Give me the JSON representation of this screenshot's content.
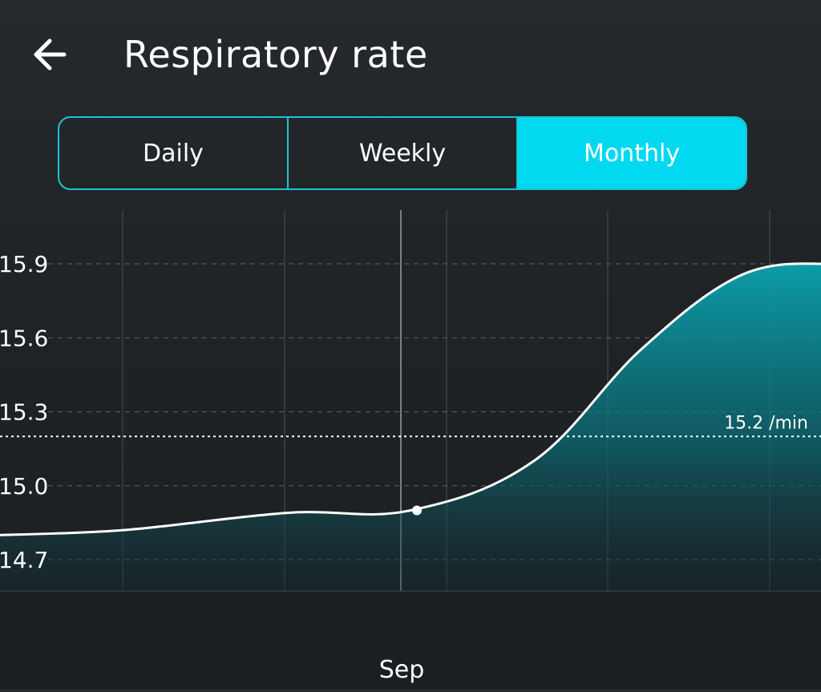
{
  "header": {
    "title": "Respiratory rate",
    "back_icon": "arrow-left-icon"
  },
  "tabs": [
    {
      "label": "Daily",
      "active": false
    },
    {
      "label": "Weekly",
      "active": false
    },
    {
      "label": "Monthly",
      "active": true
    }
  ],
  "colors": {
    "accent": "#00d9ef",
    "fill": "#0aa3b0",
    "line": "#ffffff"
  },
  "chart_data": {
    "type": "area",
    "x_label": "Sep",
    "y_ticks": [
      "15.9",
      "15.6",
      "15.3",
      "15.0",
      "14.7"
    ],
    "ylim": [
      14.6,
      16.1
    ],
    "average": {
      "value": 15.2,
      "label": "15.2 /min"
    },
    "series": [
      {
        "values": [
          14.8,
          14.82,
          14.89,
          14.9,
          15.1,
          15.55,
          15.85,
          15.9
        ],
        "positions": [
          0.0,
          0.15,
          0.35,
          0.5,
          0.65,
          0.78,
          0.9,
          1.0
        ]
      }
    ],
    "selected_index": 3,
    "grid": true
  }
}
